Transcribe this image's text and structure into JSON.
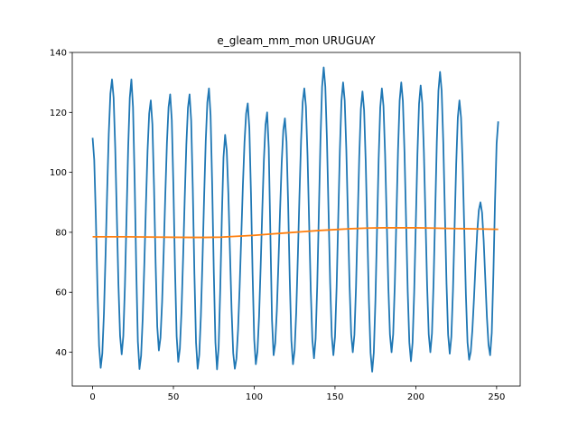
{
  "chart_data": {
    "type": "line",
    "title": "e_gleam_mm_mon URUGUAY",
    "xlabel": "",
    "ylabel": "",
    "xlim": [
      -12.6,
      264.6
    ],
    "ylim": [
      28.7,
      140
    ],
    "xticks": [
      0,
      50,
      100,
      150,
      200,
      250
    ],
    "yticks": [
      40,
      60,
      80,
      100,
      120,
      140
    ],
    "grid": false,
    "series": [
      {
        "color": "#1f77b4",
        "peaks": [
          [
            0,
            111.5
          ],
          [
            12,
            131
          ],
          [
            24,
            131
          ],
          [
            36,
            124
          ],
          [
            48,
            126
          ],
          [
            60,
            126
          ],
          [
            72,
            128
          ],
          [
            82,
            112.5
          ],
          [
            96,
            123
          ],
          [
            108,
            120
          ],
          [
            119,
            118
          ],
          [
            131,
            128
          ],
          [
            143,
            135
          ],
          [
            155,
            130
          ],
          [
            167,
            127
          ],
          [
            179,
            128
          ],
          [
            191,
            130
          ],
          [
            203,
            129
          ],
          [
            215,
            133.5
          ],
          [
            227,
            124
          ],
          [
            240,
            90
          ],
          [
            251,
            117
          ]
        ],
        "troughs": [
          [
            5,
            34.8
          ],
          [
            18,
            39.3
          ],
          [
            29,
            34.4
          ],
          [
            41,
            40.6
          ],
          [
            53,
            36.8
          ],
          [
            65,
            34.5
          ],
          [
            77,
            34.3
          ],
          [
            88,
            34.5
          ],
          [
            101,
            36
          ],
          [
            112,
            39
          ],
          [
            124,
            36
          ],
          [
            137,
            38
          ],
          [
            149,
            39
          ],
          [
            161,
            40
          ],
          [
            173,
            33.5
          ],
          [
            185,
            40
          ],
          [
            197,
            37
          ],
          [
            209,
            40
          ],
          [
            221,
            39.5
          ],
          [
            233,
            37.5
          ],
          [
            246,
            39
          ]
        ]
      },
      {
        "color": "#ff7f0e",
        "x": [
          0,
          20,
          40,
          60,
          70,
          80,
          90,
          100,
          110,
          120,
          130,
          140,
          150,
          160,
          170,
          180,
          190,
          200,
          210,
          220,
          230,
          240,
          251
        ],
        "y": [
          78.5,
          78.5,
          78.4,
          78.3,
          78.3,
          78.4,
          78.7,
          79.0,
          79.4,
          79.8,
          80.2,
          80.6,
          80.9,
          81.2,
          81.4,
          81.5,
          81.5,
          81.5,
          81.4,
          81.3,
          81.2,
          81.1,
          81.0
        ]
      }
    ]
  }
}
